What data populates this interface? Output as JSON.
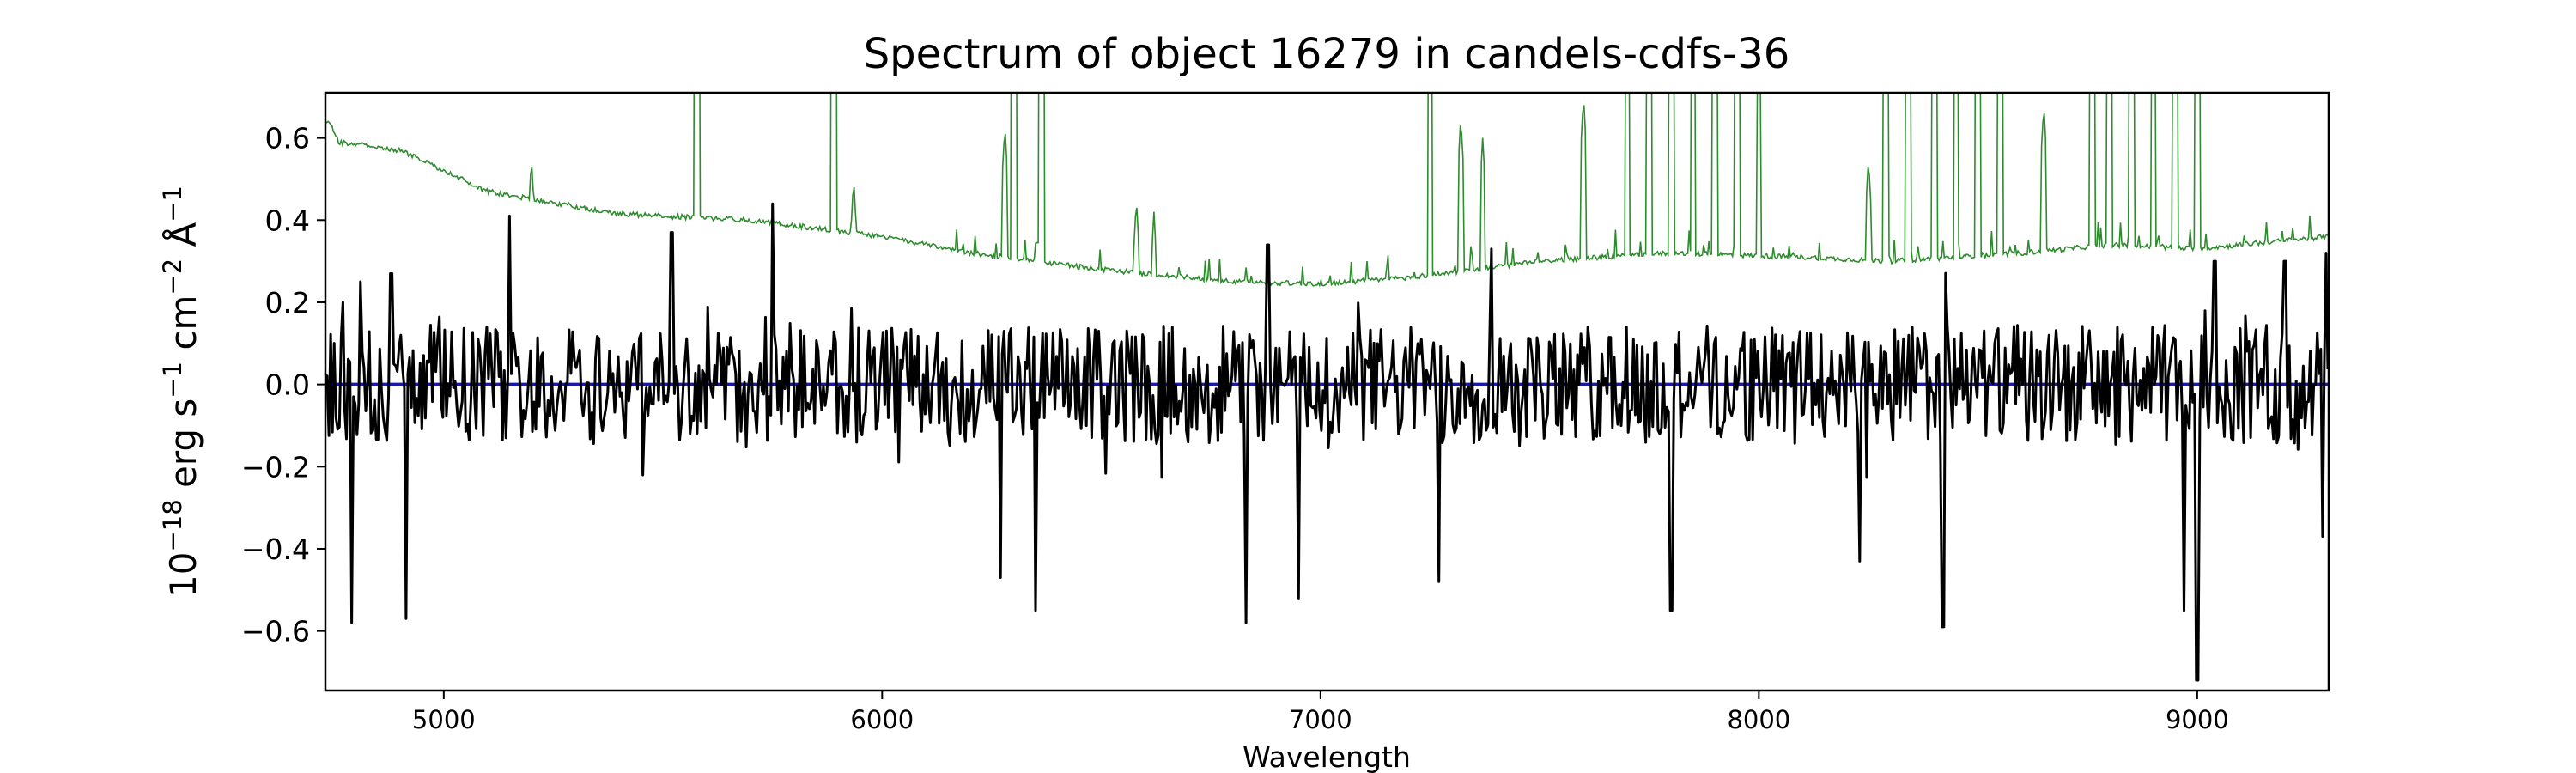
{
  "chart_data": {
    "type": "line",
    "title": "Spectrum of object 16279 in candels-cdfs-36",
    "xlabel": "Wavelength",
    "ylabel": {
      "parts": [
        {
          "text": "10",
          "sup": false
        },
        {
          "text": "−18",
          "sup": true
        },
        {
          "text": " erg s",
          "sup": false
        },
        {
          "text": "−1",
          "sup": true
        },
        {
          "text": " cm",
          "sup": false
        },
        {
          "text": "−2",
          "sup": true
        },
        {
          "text": " Å",
          "sup": false
        },
        {
          "text": "−1",
          "sup": true
        }
      ]
    },
    "xlim": [
      4730,
      9300
    ],
    "ylim": [
      -0.745,
      0.71
    ],
    "xticks": [
      5000,
      6000,
      7000,
      8000,
      9000
    ],
    "xtick_labels": [
      "5000",
      "6000",
      "7000",
      "8000",
      "9000"
    ],
    "yticks": [
      -0.6,
      -0.4,
      -0.2,
      0.0,
      0.2,
      0.4,
      0.6
    ],
    "ytick_labels": [
      "−0.6",
      "−0.4",
      "−0.2",
      "0.0",
      "0.2",
      "0.4",
      "0.6"
    ],
    "grid": false,
    "legend": false,
    "series": [
      {
        "color": "#2e8b2e",
        "style": "thin line",
        "description": "noise spectrum",
        "baseline": [
          [
            4740,
            0.64
          ],
          [
            4760,
            0.59
          ],
          [
            4900,
            0.57
          ],
          [
            5100,
            0.47
          ],
          [
            5400,
            0.415
          ],
          [
            5700,
            0.4
          ],
          [
            6000,
            0.36
          ],
          [
            6200,
            0.32
          ],
          [
            6500,
            0.28
          ],
          [
            6800,
            0.25
          ],
          [
            7000,
            0.245
          ],
          [
            7200,
            0.26
          ],
          [
            7500,
            0.3
          ],
          [
            7800,
            0.32
          ],
          [
            8100,
            0.31
          ],
          [
            8300,
            0.3
          ],
          [
            8600,
            0.32
          ],
          [
            8800,
            0.34
          ],
          [
            9000,
            0.33
          ],
          [
            9300,
            0.36
          ]
        ],
        "peaks": [
          [
            5200,
            0.55
          ],
          [
            5578,
            1.5
          ],
          [
            5890,
            1.5
          ],
          [
            5935,
            0.5
          ],
          [
            6300,
            1.5
          ],
          [
            6364,
            1.5
          ],
          [
            6280,
            0.63
          ],
          [
            6580,
            0.45
          ],
          [
            6620,
            0.42
          ],
          [
            7250,
            1.2
          ],
          [
            7320,
            0.65
          ],
          [
            7370,
            0.6
          ],
          [
            7600,
            0.7
          ],
          [
            7700,
            1.2
          ],
          [
            7750,
            1.2
          ],
          [
            7800,
            1.2
          ],
          [
            7850,
            1.2
          ],
          [
            7900,
            1.2
          ],
          [
            7950,
            1.2
          ],
          [
            8000,
            0.85
          ],
          [
            8250,
            0.55
          ],
          [
            8290,
            1.2
          ],
          [
            8340,
            1.2
          ],
          [
            8400,
            1.2
          ],
          [
            8450,
            1.2
          ],
          [
            8500,
            1.2
          ],
          [
            8550,
            1.2
          ],
          [
            8650,
            0.68
          ],
          [
            8760,
            1.2
          ],
          [
            8800,
            1.2
          ],
          [
            8850,
            1.2
          ],
          [
            8900,
            1.2
          ],
          [
            8950,
            1.2
          ],
          [
            9000,
            1.2
          ]
        ]
      },
      {
        "color": "#1a1aa6",
        "style": "flat line",
        "description": "model",
        "values": [
          [
            4730,
            0.0
          ],
          [
            9300,
            0.0
          ]
        ]
      },
      {
        "color": "#000000",
        "style": "line",
        "description": "flux",
        "step": 4,
        "amplitude": 0.19,
        "extremes": [
          [
            4770,
            0.2
          ],
          [
            4790,
            -0.58
          ],
          [
            4810,
            0.25
          ],
          [
            4880,
            0.27
          ],
          [
            4915,
            -0.57
          ],
          [
            5150,
            0.41
          ],
          [
            5520,
            0.37
          ],
          [
            5750,
            0.44
          ],
          [
            6270,
            -0.47
          ],
          [
            6350,
            -0.55
          ],
          [
            6830,
            -0.58
          ],
          [
            6880,
            0.34
          ],
          [
            6950,
            -0.52
          ],
          [
            7270,
            -0.48
          ],
          [
            7390,
            0.33
          ],
          [
            7800,
            -0.55
          ],
          [
            8230,
            -0.43
          ],
          [
            8420,
            -0.59
          ],
          [
            8970,
            -0.55
          ],
          [
            9000,
            -0.72
          ],
          [
            9040,
            0.3
          ],
          [
            9200,
            0.3
          ],
          [
            9285,
            -0.37
          ],
          [
            9295,
            0.32
          ]
        ]
      }
    ]
  }
}
